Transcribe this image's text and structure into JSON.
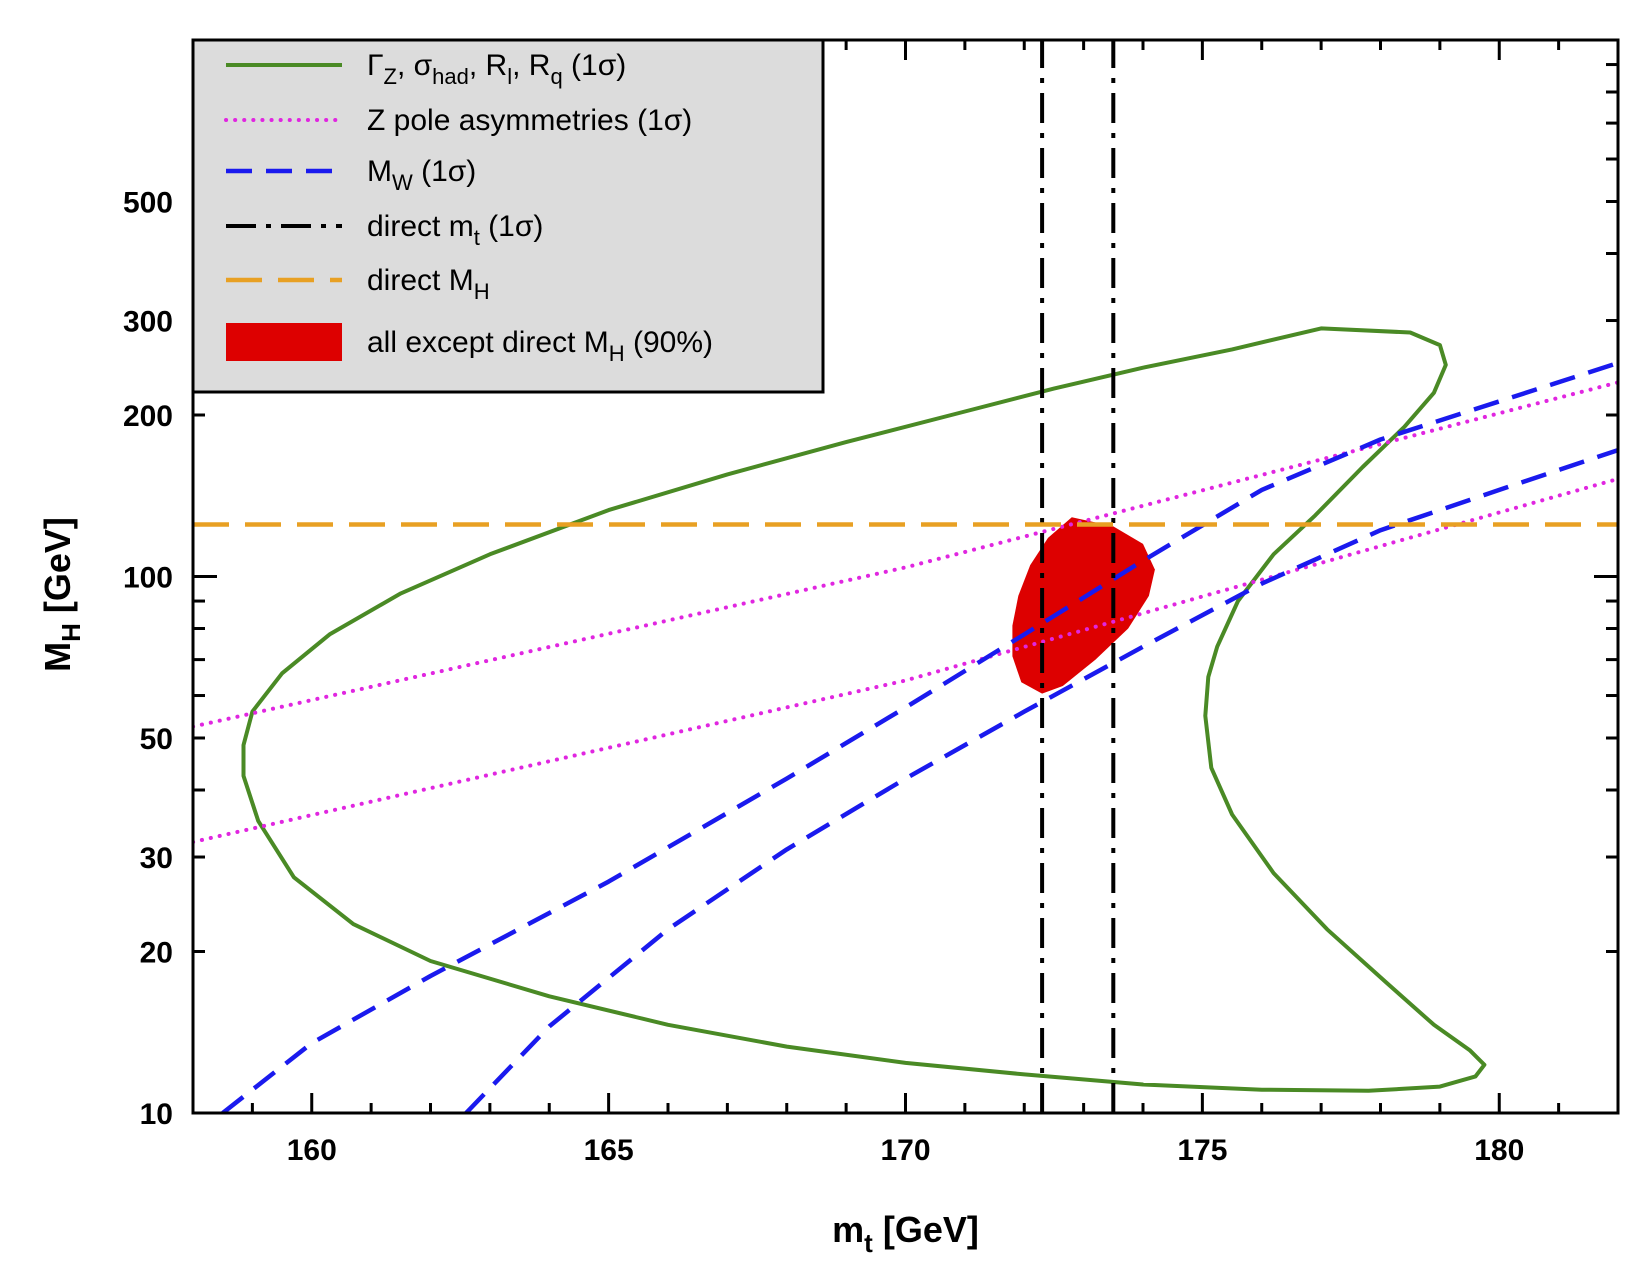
{
  "chart_data": {
    "type": "line",
    "xlabel": "m",
    "xlabel_sub": "t",
    "xlabel_unit": " [GeV]",
    "ylabel": "M",
    "ylabel_sub": "H",
    "ylabel_unit": " [GeV]",
    "xlim": [
      158,
      182
    ],
    "ylim": [
      10,
      1000
    ],
    "yscale": "log",
    "x_ticks": [
      {
        "value": 160,
        "label": "160"
      },
      {
        "value": 165,
        "label": "165"
      },
      {
        "value": 170,
        "label": "170"
      },
      {
        "value": 175,
        "label": "175"
      },
      {
        "value": 180,
        "label": "180"
      }
    ],
    "y_ticks": [
      {
        "value": 10,
        "label": "10"
      },
      {
        "value": 20,
        "label": "20"
      },
      {
        "value": 30,
        "label": "30"
      },
      {
        "value": 50,
        "label": "50"
      },
      {
        "value": 100,
        "label": "100"
      },
      {
        "value": 200,
        "label": "200"
      },
      {
        "value": 300,
        "label": "300"
      },
      {
        "value": 500,
        "label": "500"
      }
    ],
    "y_major_ticks": [
      10,
      100
    ],
    "legend": {
      "position": "top-left",
      "entries": [
        {
          "key": "gz",
          "parts": [
            {
              "t": "Γ"
            },
            {
              "t": "Z",
              "sub": true
            },
            {
              "t": ", σ"
            },
            {
              "t": "had",
              "sub": true
            },
            {
              "t": ", R"
            },
            {
              "t": "l",
              "sub": true
            },
            {
              "t": ", R"
            },
            {
              "t": "q",
              "sub": true
            },
            {
              "t": " (1σ)"
            }
          ]
        },
        {
          "key": "zpole",
          "parts": [
            {
              "t": "Z pole asymmetries (1σ)"
            }
          ]
        },
        {
          "key": "mw",
          "parts": [
            {
              "t": "M"
            },
            {
              "t": "W",
              "sub": true
            },
            {
              "t": " (1σ)"
            }
          ]
        },
        {
          "key": "mt",
          "parts": [
            {
              "t": "direct m"
            },
            {
              "t": "t",
              "sub": true
            },
            {
              "t": " (1σ)"
            }
          ]
        },
        {
          "key": "mh",
          "parts": [
            {
              "t": "direct M"
            },
            {
              "t": "H",
              "sub": true
            }
          ]
        },
        {
          "key": "all",
          "parts": [
            {
              "t": "all except direct M"
            },
            {
              "t": "H",
              "sub": true
            },
            {
              "t": " (90%)"
            }
          ]
        }
      ]
    },
    "series": [
      {
        "key": "gz",
        "name": "ΓZ, σhad, Rl, Rq (1σ)",
        "style": "solid",
        "color": "#4a8a25",
        "closed": true,
        "points": [
          [
            177.0,
            290
          ],
          [
            178.5,
            285
          ],
          [
            179.0,
            270
          ],
          [
            179.1,
            248
          ],
          [
            178.9,
            220
          ],
          [
            178.4,
            190
          ],
          [
            177.7,
            160
          ],
          [
            176.9,
            130
          ],
          [
            176.2,
            110
          ],
          [
            175.6,
            90
          ],
          [
            175.25,
            74
          ],
          [
            175.1,
            65
          ],
          [
            175.05,
            55
          ],
          [
            175.15,
            44
          ],
          [
            175.5,
            36
          ],
          [
            176.2,
            28
          ],
          [
            177.1,
            22
          ],
          [
            178.1,
            17.5
          ],
          [
            178.9,
            14.6
          ],
          [
            179.5,
            13.1
          ],
          [
            179.75,
            12.3
          ],
          [
            179.6,
            11.7
          ],
          [
            179.0,
            11.2
          ],
          [
            177.8,
            11.0
          ],
          [
            176.0,
            11.05
          ],
          [
            174.0,
            11.3
          ],
          [
            172.0,
            11.8
          ],
          [
            170.0,
            12.4
          ],
          [
            168.0,
            13.3
          ],
          [
            166.0,
            14.6
          ],
          [
            164.0,
            16.5
          ],
          [
            162.0,
            19.2
          ],
          [
            160.7,
            22.5
          ],
          [
            159.7,
            27.5
          ],
          [
            159.1,
            35.0
          ],
          [
            158.85,
            42.5
          ],
          [
            158.85,
            48.5
          ],
          [
            159.0,
            56.0
          ],
          [
            159.5,
            66.0
          ],
          [
            160.3,
            78.0
          ],
          [
            161.5,
            93.0
          ],
          [
            163.0,
            110.0
          ],
          [
            165.0,
            133.0
          ],
          [
            167.0,
            155.0
          ],
          [
            169.0,
            178.0
          ],
          [
            171.0,
            203.0
          ],
          [
            172.5,
            224.0
          ],
          [
            174.0,
            245.0
          ],
          [
            175.5,
            265.0
          ],
          [
            177.0,
            290
          ]
        ]
      },
      {
        "key": "zpole_upper",
        "name": "Z pole asymmetries (1σ)",
        "style": "dotted",
        "color": "#e026e0",
        "points": [
          [
            158,
            52.5
          ],
          [
            170,
            104
          ],
          [
            182,
            230
          ]
        ]
      },
      {
        "key": "zpole_lower",
        "name": "Z pole asymmetries (1σ)",
        "style": "dotted",
        "color": "#e026e0",
        "points": [
          [
            158,
            32
          ],
          [
            170,
            64
          ],
          [
            182,
            152
          ]
        ]
      },
      {
        "key": "mw_upper",
        "name": "MW (1σ)",
        "style": "dashed",
        "color": "#1a1aee",
        "points": [
          [
            158.5,
            10
          ],
          [
            160,
            13.5
          ],
          [
            162,
            18
          ],
          [
            165,
            27
          ],
          [
            168,
            42
          ],
          [
            170,
            57
          ],
          [
            172,
            78
          ],
          [
            174,
            107
          ],
          [
            176,
            145
          ],
          [
            178,
            180
          ],
          [
            180,
            212
          ],
          [
            182,
            250
          ]
        ]
      },
      {
        "key": "mw_lower",
        "name": "MW (1σ)",
        "style": "dashed",
        "color": "#1a1aee",
        "points": [
          [
            162.6,
            10
          ],
          [
            164,
            14.5
          ],
          [
            166,
            22
          ],
          [
            168,
            31
          ],
          [
            170,
            42
          ],
          [
            172,
            56
          ],
          [
            174,
            74
          ],
          [
            176,
            97
          ],
          [
            178,
            122
          ],
          [
            180,
            145
          ],
          [
            182,
            172
          ]
        ]
      },
      {
        "key": "mt_left",
        "name": "direct mt (1σ)",
        "style": "dashdot",
        "color": "#000000",
        "points": [
          [
            172.3,
            10
          ],
          [
            172.3,
            1000
          ]
        ]
      },
      {
        "key": "mt_right",
        "name": "direct mt (1σ)",
        "style": "dashdot",
        "color": "#000000",
        "points": [
          [
            173.5,
            10
          ],
          [
            173.5,
            1000
          ]
        ]
      },
      {
        "key": "mh",
        "name": "direct MH",
        "style": "longdash",
        "color": "#e8a023",
        "points": [
          [
            158,
            125
          ],
          [
            182,
            125
          ]
        ]
      }
    ],
    "regions": [
      {
        "key": "all",
        "name": "all except direct MH (90%)",
        "color": "#dd0000",
        "points": [
          [
            172.8,
            129
          ],
          [
            173.5,
            124
          ],
          [
            174.0,
            115
          ],
          [
            174.2,
            103
          ],
          [
            174.1,
            92
          ],
          [
            173.75,
            80
          ],
          [
            173.2,
            70
          ],
          [
            172.65,
            62.5
          ],
          [
            172.3,
            60.5
          ],
          [
            171.95,
            63.5
          ],
          [
            171.8,
            71
          ],
          [
            171.8,
            81
          ],
          [
            171.9,
            92
          ],
          [
            172.1,
            105
          ],
          [
            172.4,
            118
          ],
          [
            172.8,
            129
          ]
        ]
      }
    ]
  }
}
